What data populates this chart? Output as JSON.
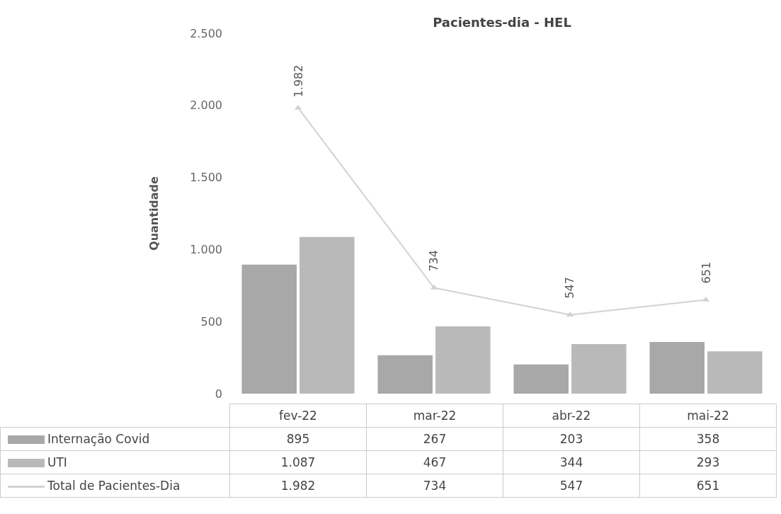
{
  "chart_data": {
    "type": "bar",
    "title": "Pacientes-dia - HEL",
    "ylabel": "Quantidade",
    "categories": [
      "fev-22",
      "mar-22",
      "abr-22",
      "mai-22"
    ],
    "series": [
      {
        "name": "Internação Covid",
        "color": "#a8a8a8",
        "values": [
          895,
          267,
          203,
          358
        ],
        "value_labels": [
          "895",
          "267",
          "203",
          "358"
        ]
      },
      {
        "name": "UTI",
        "color": "#b9b9b9",
        "values": [
          1087,
          467,
          344,
          293
        ],
        "value_labels": [
          "1.087",
          "467",
          "344",
          "293"
        ]
      },
      {
        "name": "Total de Pacientes-Dia",
        "type": "line",
        "color": "#d2d2d2",
        "values": [
          1982,
          734,
          547,
          651
        ],
        "value_labels": [
          "1.982",
          "734",
          "547",
          "651"
        ]
      }
    ],
    "ylim": [
      0,
      2500
    ],
    "yticks": [
      {
        "value": 0,
        "label": "0"
      },
      {
        "value": 500,
        "label": "500"
      },
      {
        "value": 1000,
        "label": "1.000"
      },
      {
        "value": 1500,
        "label": "1.500"
      },
      {
        "value": 2000,
        "label": "2.000"
      },
      {
        "value": 2500,
        "label": "2.500"
      }
    ],
    "grid": false,
    "legend": "bottom",
    "marker": "triangle"
  }
}
